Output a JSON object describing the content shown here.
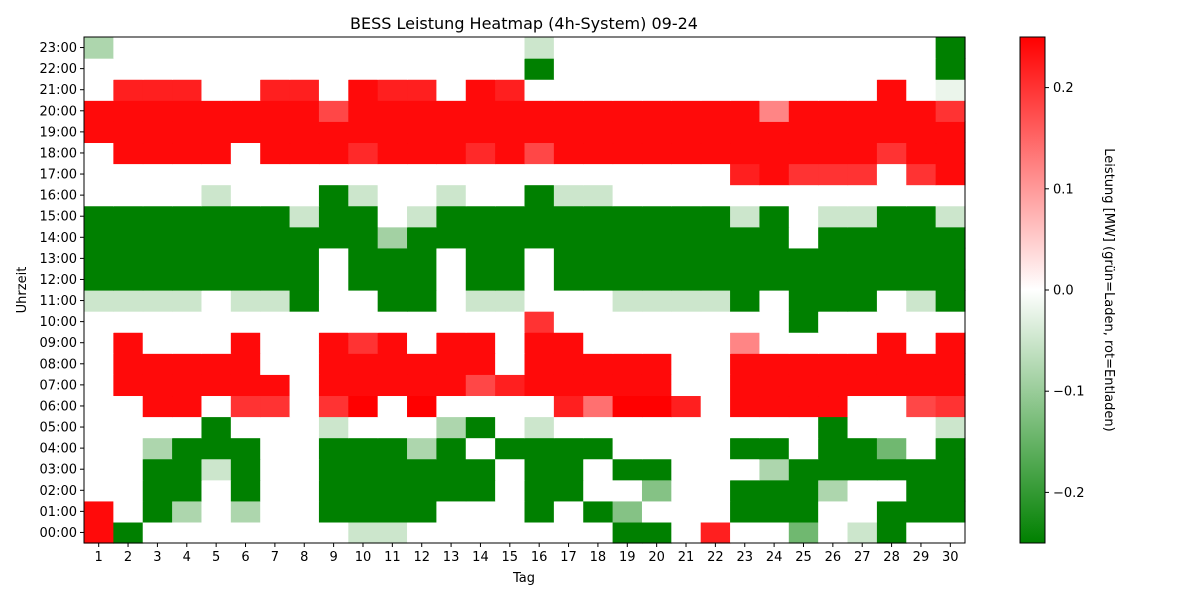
{
  "chart_data": {
    "type": "heatmap",
    "title": "BESS Leistung Heatmap (4h-System) 09-24",
    "xlabel": "Tag",
    "ylabel": "Uhrzeit",
    "colorbar_label": "Leistung [MW] (grün=Laden, rot=Entladen)",
    "x": [
      1,
      2,
      3,
      4,
      5,
      6,
      7,
      8,
      9,
      10,
      11,
      12,
      13,
      14,
      15,
      16,
      17,
      18,
      19,
      20,
      21,
      22,
      23,
      24,
      25,
      26,
      27,
      28,
      29,
      30
    ],
    "y": [
      "00:00",
      "01:00",
      "02:00",
      "03:00",
      "04:00",
      "05:00",
      "06:00",
      "07:00",
      "08:00",
      "09:00",
      "10:00",
      "11:00",
      "12:00",
      "13:00",
      "14:00",
      "15:00",
      "16:00",
      "17:00",
      "18:00",
      "19:00",
      "20:00",
      "21:00",
      "22:00",
      "23:00"
    ],
    "vmin": -0.25,
    "vmax": 0.25,
    "colorbar_ticks": [
      -0.2,
      -0.1,
      0.0,
      0.1,
      0.2
    ],
    "colorbar_tick_labels": [
      "−0.2",
      "−0.1",
      "0.0",
      "0.1",
      "0.2"
    ],
    "colors": {
      "negative": "#008000",
      "zero": "#ffffff",
      "positive": "#ff0000"
    },
    "grid": false,
    "values": [
      [
        0.24,
        -0.25,
        0,
        0,
        0,
        0,
        0,
        0,
        0,
        -0.05,
        -0.05,
        0,
        0,
        0,
        0,
        0,
        0,
        0,
        -0.25,
        -0.25,
        0,
        0.22,
        0,
        0,
        -0.14,
        0,
        -0.05,
        -0.25,
        0,
        0
      ],
      [
        0.24,
        0,
        -0.25,
        -0.08,
        0,
        -0.08,
        0,
        0,
        -0.25,
        -0.25,
        -0.25,
        -0.25,
        0,
        0,
        0,
        -0.25,
        0,
        -0.25,
        -0.12,
        0,
        0,
        0,
        -0.25,
        -0.25,
        -0.25,
        0,
        0,
        -0.25,
        -0.25,
        -0.25
      ],
      [
        0,
        0,
        -0.25,
        -0.25,
        0,
        -0.25,
        0,
        0,
        -0.25,
        -0.25,
        -0.25,
        -0.25,
        -0.25,
        -0.25,
        0,
        -0.25,
        -0.25,
        0,
        0,
        -0.12,
        0,
        0,
        -0.25,
        -0.25,
        -0.25,
        -0.08,
        0,
        0,
        -0.25,
        -0.25
      ],
      [
        0,
        0,
        -0.25,
        -0.25,
        -0.05,
        -0.25,
        0,
        0,
        -0.25,
        -0.25,
        -0.25,
        -0.25,
        -0.25,
        -0.25,
        0,
        -0.25,
        -0.25,
        0,
        -0.25,
        -0.25,
        0,
        0,
        0,
        -0.08,
        -0.25,
        -0.25,
        -0.25,
        -0.25,
        -0.25,
        -0.25
      ],
      [
        0,
        0,
        -0.08,
        -0.25,
        -0.25,
        -0.25,
        0,
        0,
        -0.25,
        -0.25,
        -0.25,
        -0.08,
        -0.25,
        0,
        -0.25,
        -0.25,
        -0.25,
        -0.25,
        0,
        0,
        0,
        0,
        -0.25,
        -0.25,
        0,
        -0.25,
        -0.25,
        -0.14,
        0,
        -0.25
      ],
      [
        0,
        0,
        0,
        0,
        -0.25,
        0,
        0,
        0,
        -0.05,
        0,
        0,
        0,
        -0.08,
        -0.25,
        0,
        -0.05,
        0,
        0,
        0,
        0,
        0,
        0,
        0,
        0,
        0,
        -0.25,
        0,
        0,
        0,
        -0.05
      ],
      [
        0,
        0,
        0.24,
        0.24,
        0,
        0.2,
        0.2,
        0,
        0.2,
        0.25,
        0,
        0.25,
        0,
        0,
        0,
        0,
        0.22,
        0.14,
        0.25,
        0.25,
        0.22,
        0,
        0.24,
        0.24,
        0.24,
        0.24,
        0,
        0,
        0.18,
        0.2
      ],
      [
        0,
        0.24,
        0.24,
        0.24,
        0.24,
        0.24,
        0.24,
        0,
        0.24,
        0.24,
        0.24,
        0.24,
        0.24,
        0.18,
        0.22,
        0.24,
        0.24,
        0.24,
        0.24,
        0.24,
        0,
        0,
        0.24,
        0.24,
        0.24,
        0.24,
        0.24,
        0.24,
        0.24,
        0.24
      ],
      [
        0,
        0.24,
        0.24,
        0.24,
        0.24,
        0.24,
        0,
        0,
        0.24,
        0.24,
        0.24,
        0.24,
        0.24,
        0.24,
        0,
        0.24,
        0.24,
        0.24,
        0.24,
        0.24,
        0,
        0,
        0.24,
        0.24,
        0.24,
        0.24,
        0.24,
        0.24,
        0.24,
        0.24
      ],
      [
        0,
        0.24,
        0,
        0,
        0,
        0.24,
        0,
        0,
        0.24,
        0.2,
        0.24,
        0,
        0.24,
        0.24,
        0,
        0.24,
        0.24,
        0,
        0,
        0,
        0,
        0,
        0.12,
        0,
        0,
        0,
        0,
        0.24,
        0,
        0.24
      ],
      [
        0,
        0,
        0,
        0,
        0,
        0,
        0,
        0,
        0,
        0,
        0,
        0,
        0,
        0,
        0,
        0.2,
        0,
        0,
        0,
        0,
        0,
        0,
        0,
        0,
        -0.25,
        0,
        0,
        0,
        0,
        0
      ],
      [
        -0.05,
        -0.05,
        -0.05,
        -0.05,
        0,
        -0.05,
        -0.05,
        -0.25,
        0,
        0,
        -0.25,
        -0.25,
        0,
        -0.05,
        -0.05,
        0,
        0,
        0,
        -0.05,
        -0.05,
        -0.05,
        -0.05,
        -0.25,
        0,
        -0.25,
        -0.25,
        -0.25,
        0,
        -0.05,
        -0.25
      ],
      [
        -0.25,
        -0.25,
        -0.25,
        -0.25,
        -0.25,
        -0.25,
        -0.25,
        -0.25,
        0,
        -0.25,
        -0.25,
        -0.25,
        0,
        -0.25,
        -0.25,
        0,
        -0.25,
        -0.25,
        -0.25,
        -0.25,
        -0.25,
        -0.25,
        -0.25,
        -0.25,
        -0.25,
        -0.25,
        -0.25,
        -0.25,
        -0.25,
        -0.25
      ],
      [
        -0.25,
        -0.25,
        -0.25,
        -0.25,
        -0.25,
        -0.25,
        -0.25,
        -0.25,
        0,
        -0.25,
        -0.25,
        -0.25,
        0,
        -0.25,
        -0.25,
        0,
        -0.25,
        -0.25,
        -0.25,
        -0.25,
        -0.25,
        -0.25,
        -0.25,
        -0.25,
        -0.25,
        -0.25,
        -0.25,
        -0.25,
        -0.25,
        -0.25
      ],
      [
        -0.25,
        -0.25,
        -0.25,
        -0.25,
        -0.25,
        -0.25,
        -0.25,
        -0.25,
        -0.25,
        -0.25,
        -0.09,
        -0.25,
        -0.25,
        -0.25,
        -0.25,
        -0.25,
        -0.25,
        -0.25,
        -0.25,
        -0.25,
        -0.25,
        -0.25,
        -0.25,
        -0.25,
        0,
        -0.25,
        -0.25,
        -0.25,
        -0.25,
        -0.25
      ],
      [
        -0.25,
        -0.25,
        -0.25,
        -0.25,
        -0.25,
        -0.25,
        -0.25,
        -0.05,
        -0.25,
        -0.25,
        0,
        -0.05,
        -0.25,
        -0.25,
        -0.25,
        -0.25,
        -0.25,
        -0.25,
        -0.25,
        -0.25,
        -0.25,
        -0.25,
        -0.05,
        -0.25,
        0,
        -0.05,
        -0.05,
        -0.25,
        -0.25,
        -0.05
      ],
      [
        0,
        0,
        0,
        0,
        -0.05,
        0,
        0,
        0,
        -0.25,
        -0.05,
        0,
        0,
        -0.05,
        0,
        0,
        -0.25,
        -0.05,
        -0.05,
        0,
        0,
        0,
        0,
        0,
        0,
        0,
        0,
        0,
        0,
        0,
        0
      ],
      [
        0,
        0,
        0,
        0,
        0,
        0,
        0,
        0,
        0,
        0,
        0,
        0,
        0,
        0,
        0,
        0,
        0,
        0,
        0,
        0,
        0,
        0,
        0.22,
        0.24,
        0.2,
        0.2,
        0.2,
        0,
        0.2,
        0.24
      ],
      [
        0,
        0.24,
        0.24,
        0.24,
        0.24,
        0,
        0.24,
        0.24,
        0.24,
        0.21,
        0.24,
        0.24,
        0.24,
        0.21,
        0.24,
        0.18,
        0.24,
        0.24,
        0.24,
        0.24,
        0.24,
        0.24,
        0.24,
        0.24,
        0.24,
        0.24,
        0.24,
        0.2,
        0.24,
        0.24
      ],
      [
        0.24,
        0.24,
        0.24,
        0.24,
        0.24,
        0.24,
        0.24,
        0.24,
        0.24,
        0.24,
        0.24,
        0.24,
        0.24,
        0.24,
        0.24,
        0.24,
        0.24,
        0.24,
        0.24,
        0.24,
        0.24,
        0.24,
        0.24,
        0.24,
        0.24,
        0.24,
        0.24,
        0.24,
        0.24,
        0.24
      ],
      [
        0.24,
        0.24,
        0.24,
        0.24,
        0.24,
        0.24,
        0.24,
        0.24,
        0.18,
        0.24,
        0.24,
        0.24,
        0.24,
        0.24,
        0.24,
        0.24,
        0.24,
        0.24,
        0.24,
        0.24,
        0.24,
        0.24,
        0.24,
        0.12,
        0.24,
        0.24,
        0.24,
        0.24,
        0.24,
        0.2
      ],
      [
        0,
        0.22,
        0.22,
        0.22,
        0,
        0,
        0.22,
        0.22,
        0,
        0.24,
        0.22,
        0.22,
        0,
        0.24,
        0.22,
        0,
        0,
        0,
        0,
        0,
        0,
        0,
        0,
        0,
        0,
        0,
        0,
        0.24,
        0,
        -0.02
      ],
      [
        0,
        0,
        0,
        0,
        0,
        0,
        0,
        0,
        0,
        0,
        0,
        0,
        0,
        0,
        0,
        -0.25,
        0,
        0,
        0,
        0,
        0,
        0,
        0,
        0,
        0,
        0,
        0,
        0,
        0,
        -0.25
      ],
      [
        -0.08,
        0,
        0,
        0,
        0,
        0,
        0,
        0,
        0,
        0,
        0,
        0,
        0,
        0,
        0,
        -0.05,
        0,
        0,
        0,
        0,
        0,
        0,
        0,
        0,
        0,
        0,
        0,
        0,
        0,
        -0.25
      ]
    ]
  }
}
